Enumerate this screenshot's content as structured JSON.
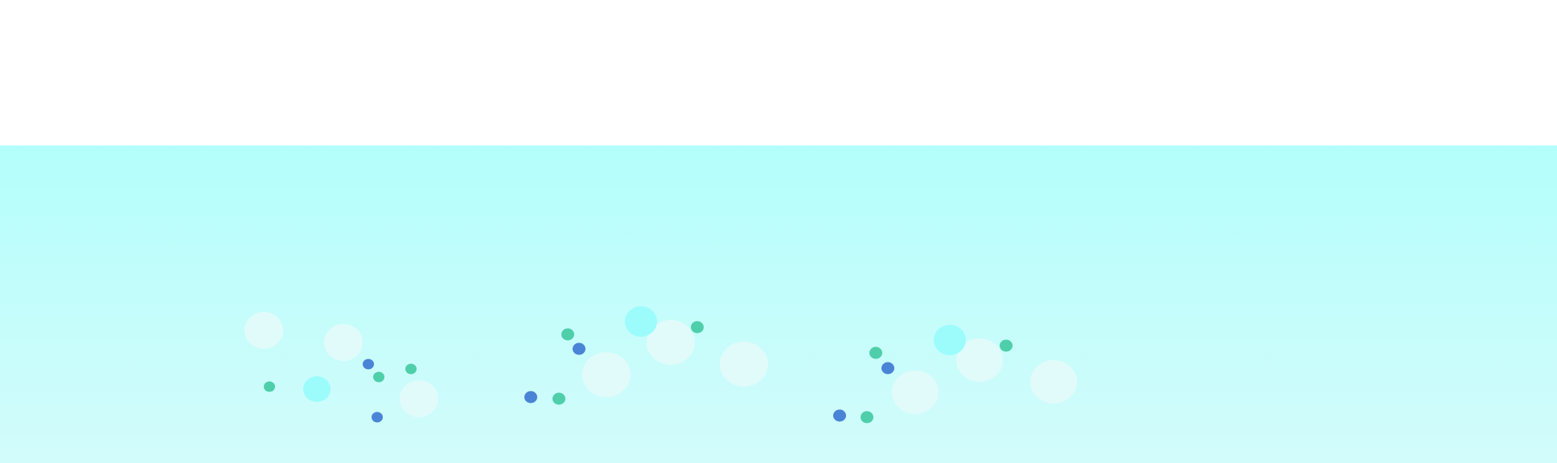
{
  "scene": {
    "colors": {
      "background_top": "#ffffff",
      "water_top": "#b3fefb",
      "water_mid": "#c2fdfb",
      "water_bottom": "#d2fcfb",
      "soft_bubble": "#e3fbfa",
      "cyan_dot": "#9cfcfc",
      "green_dot": "#4ecfaa",
      "blue_dot": "#4a84d6"
    }
  }
}
